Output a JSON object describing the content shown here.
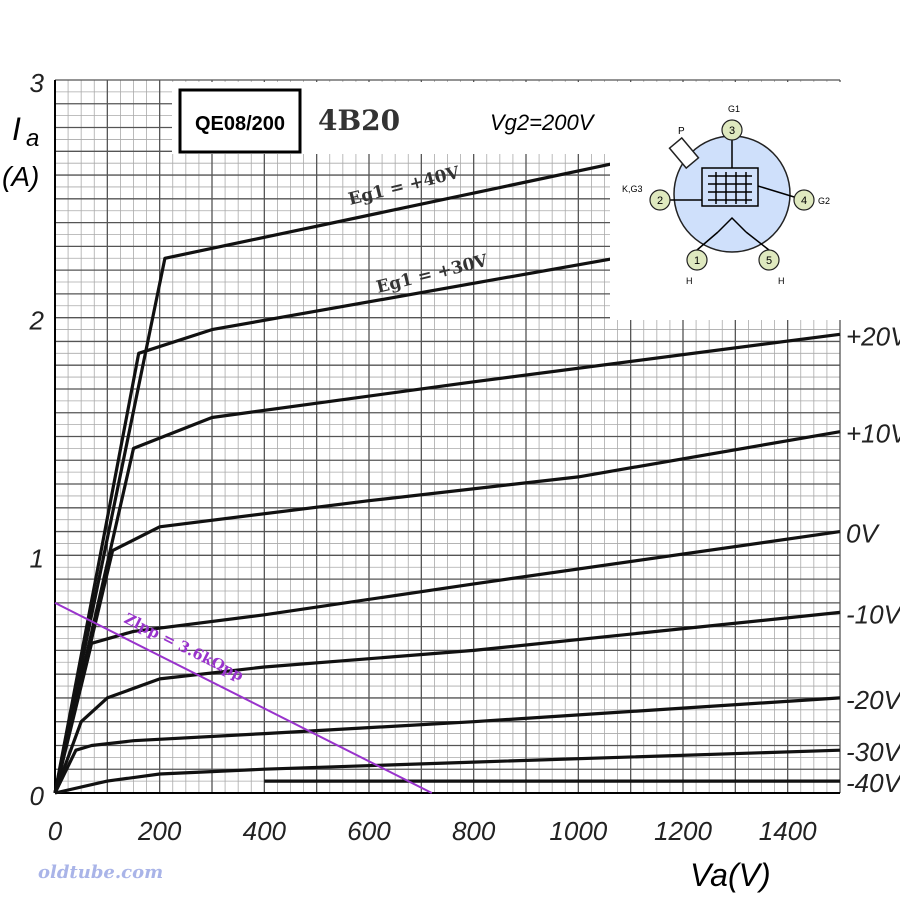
{
  "chart_data": {
    "type": "line",
    "title_box": "QE08/200",
    "subtitle": "4B20",
    "condition": "Vg2=200V",
    "ylabel_sym": "I",
    "ylabel_sub": "a",
    "ylabel_unit": "(A)",
    "xlabel": "Va(V)",
    "ylim": [
      0,
      3
    ],
    "xlim": [
      0,
      1500
    ],
    "x_ticks": [
      0,
      200,
      400,
      600,
      800,
      1000,
      1200,
      1400
    ],
    "x_tick_labels": [
      "0",
      "200",
      "400",
      "600",
      "800",
      "1000",
      "1200",
      "1400"
    ],
    "y_ticks": [
      0,
      1,
      2,
      3
    ],
    "y_tick_labels": [
      "0",
      "1",
      "2",
      "3"
    ],
    "grid": true,
    "series": [
      {
        "name": "Eg1 = +40V",
        "x": [
          0,
          210,
          1070
        ],
        "y": [
          0,
          2.25,
          2.65
        ]
      },
      {
        "name": "Eg1 = +30V",
        "x": [
          0,
          160,
          300,
          1070
        ],
        "y": [
          0,
          1.85,
          1.95,
          2.25
        ]
      },
      {
        "name": "+20V",
        "x": [
          0,
          150,
          300,
          800,
          1500
        ],
        "y": [
          0,
          1.45,
          1.58,
          1.73,
          1.93
        ]
      },
      {
        "name": "+10V",
        "x": [
          0,
          110,
          200,
          600,
          1000,
          1500
        ],
        "y": [
          0,
          1.02,
          1.12,
          1.23,
          1.33,
          1.52
        ]
      },
      {
        "name": "0V",
        "x": [
          0,
          70,
          150,
          400,
          800,
          1500
        ],
        "y": [
          0,
          0.63,
          0.68,
          0.75,
          0.88,
          1.1
        ]
      },
      {
        "name": "-10V",
        "x": [
          0,
          50,
          100,
          200,
          400,
          800,
          1500
        ],
        "y": [
          0,
          0.3,
          0.4,
          0.48,
          0.53,
          0.6,
          0.76
        ]
      },
      {
        "name": "-20V",
        "x": [
          0,
          40,
          70,
          150,
          400,
          800,
          1500
        ],
        "y": [
          0,
          0.18,
          0.2,
          0.22,
          0.25,
          0.3,
          0.4
        ]
      },
      {
        "name": "-30V",
        "x": [
          0,
          100,
          200,
          400,
          800,
          1500
        ],
        "y": [
          0,
          0.05,
          0.08,
          0.1,
          0.13,
          0.18
        ]
      },
      {
        "name": "-40V",
        "x": [
          400,
          800,
          1500
        ],
        "y": [
          0.05,
          0.05,
          0.05
        ]
      }
    ],
    "right_labels": [
      "+20V",
      "+10V",
      "0V",
      "-10V",
      "-20V",
      "-30V",
      "-40V"
    ],
    "load_line": {
      "label": "Zlpp = 3.6kΩpp",
      "x": [
        0,
        720
      ],
      "y": [
        0.8,
        0
      ],
      "color": "#9933cc"
    },
    "inset": {
      "pins": [
        {
          "num": "1",
          "label": "H"
        },
        {
          "num": "2",
          "label": "K,G3"
        },
        {
          "num": "3",
          "label": "G1"
        },
        {
          "num": "4",
          "label": "G2"
        },
        {
          "num": "5",
          "label": "H"
        }
      ],
      "plate_label": "P"
    },
    "watermark": "oldtube.com"
  }
}
